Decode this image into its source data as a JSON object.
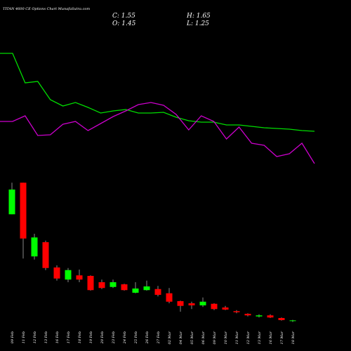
{
  "chart_data": {
    "type": "candlestick",
    "title": "TITAN 4600 CE Options Chart MunafaSutra.com",
    "info": {
      "close": "C: 1.55",
      "high": "H: 1.65",
      "open": "O: 1.45",
      "low": "L: 1.25"
    },
    "categories": [
      "09 Feb",
      "11 Feb",
      "12 Feb",
      "13 Feb",
      "16 Feb",
      "17 Feb",
      "18 Feb",
      "19 Feb",
      "20 Feb",
      "23 Feb",
      "24 Feb",
      "25 Feb",
      "26 Feb",
      "27 Feb",
      "02 Mar",
      "04 Mar",
      "05 Mar",
      "06 Mar",
      "09 Mar",
      "10 Mar",
      "11 Mar",
      "12 Mar",
      "13 Mar",
      "16 Mar",
      "17 Mar",
      "18 Mar"
    ],
    "open": [
      21.7,
      27.7,
      13.7,
      16.4,
      11.6,
      9.3,
      10.1,
      10.0,
      8.8,
      7.9,
      8.4,
      6.8,
      7.3,
      7.5,
      6.7,
      5.2,
      4.8,
      4.4,
      4.7,
      4.0,
      3.3,
      2.8,
      2.3,
      2.5,
      2.0,
      1.45
    ],
    "high": [
      27.7,
      27.7,
      18.0,
      16.7,
      12.0,
      11.5,
      11.2,
      10.1,
      9.3,
      9.3,
      8.5,
      8.8,
      9.1,
      8.1,
      7.7,
      5.3,
      5.1,
      5.9,
      4.8,
      4.3,
      3.5,
      2.9,
      2.7,
      2.7,
      2.1,
      1.65
    ],
    "low": [
      21.7,
      13.3,
      13.1,
      11.1,
      9.1,
      8.8,
      8.8,
      7.2,
      7.5,
      7.7,
      7.2,
      6.7,
      7.2,
      6.1,
      4.8,
      3.2,
      3.7,
      4.1,
      3.5,
      3.5,
      2.9,
      2.3,
      2.1,
      2.0,
      1.5,
      1.25
    ],
    "close": [
      26.4,
      17.1,
      17.3,
      11.5,
      9.5,
      11.1,
      9.3,
      7.3,
      7.7,
      8.8,
      7.3,
      7.6,
      8.0,
      6.4,
      5.1,
      4.3,
      4.4,
      5.1,
      3.7,
      3.6,
      3.1,
      2.5,
      2.5,
      2.1,
      1.6,
      1.55
    ],
    "up_color": "#00ff00",
    "down_color": "#ff0000",
    "ylim": [
      0,
      30
    ],
    "lines": [
      {
        "color": "#00dd00",
        "values": [
          174,
          174,
          132,
          134,
          108,
          99,
          104,
          97,
          89,
          92,
          94,
          89,
          89,
          90,
          83,
          78,
          76,
          76,
          72,
          72,
          70,
          68,
          67,
          66,
          64,
          63
        ]
      },
      {
        "color": "#cc00cc",
        "values": [
          77,
          77,
          85,
          57,
          58,
          73,
          77,
          64,
          74,
          84,
          92,
          101,
          104,
          100,
          87,
          65,
          85,
          77,
          52,
          69,
          46,
          43,
          27,
          31,
          46,
          17
        ]
      }
    ],
    "y2lim": [
      0,
      190
    ]
  }
}
